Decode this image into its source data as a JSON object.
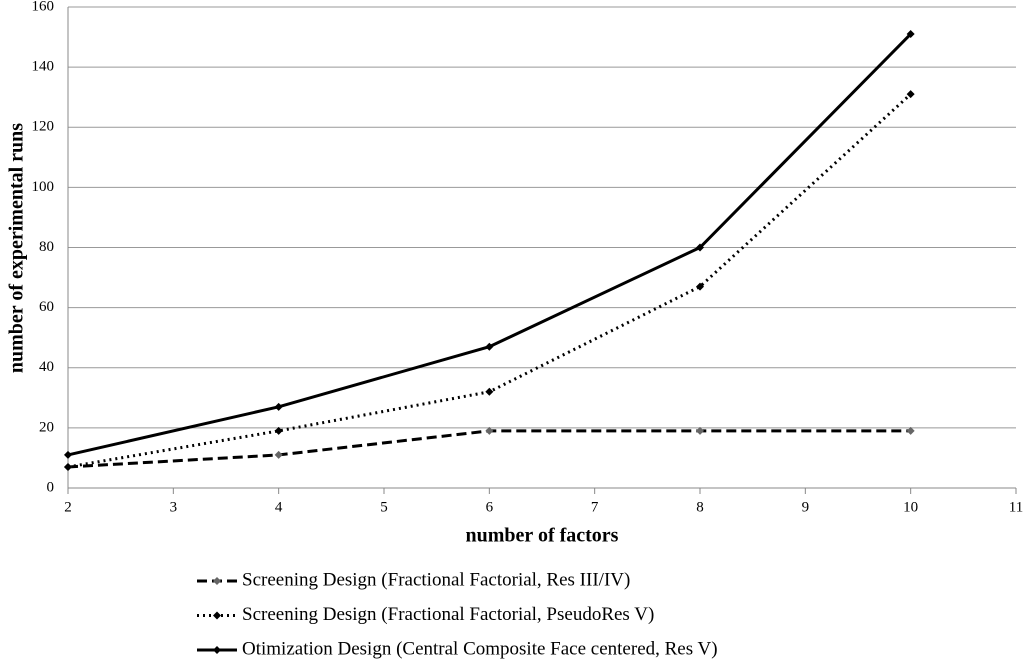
{
  "chart_data": {
    "type": "line",
    "x_label": "number of factors",
    "y_label": "number of experimental runs",
    "x": [
      2,
      4,
      6,
      8,
      10
    ],
    "series": [
      {
        "name": "Screening Design (Fractional Factorial, Res III/IV)",
        "color": "#000000",
        "marker_color": "#666666",
        "line_style": "dashed",
        "values": [
          7,
          11,
          19,
          19,
          19
        ]
      },
      {
        "name": "Screening Design (Fractional Factorial, PseudoRes V)",
        "color": "#000000",
        "marker_color": "#000000",
        "line_style": "dotted",
        "values": [
          7,
          19,
          32,
          67,
          131
        ]
      },
      {
        "name": "Otimization Design (Central Composite Face centered, Res V)",
        "color": "#000000",
        "marker_color": "#000000",
        "line_style": "solid",
        "values": [
          11,
          27,
          47,
          80,
          151
        ]
      }
    ],
    "xlim": [
      2,
      11
    ],
    "xticks": [
      2,
      3,
      4,
      5,
      6,
      7,
      8,
      9,
      10,
      11
    ],
    "ylim": [
      0,
      160
    ],
    "yticks": [
      0,
      20,
      40,
      60,
      80,
      100,
      120,
      140,
      160
    ],
    "grid": true,
    "legend": "bottom"
  }
}
